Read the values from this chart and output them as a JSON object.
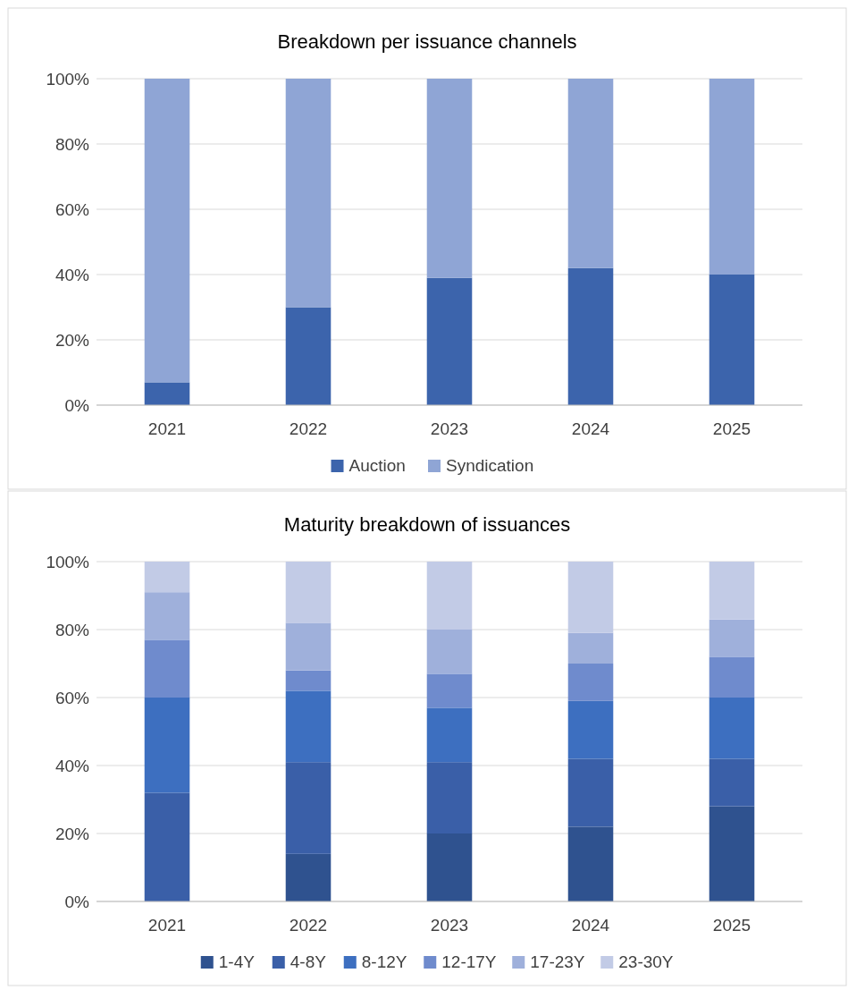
{
  "chart_data": [
    {
      "type": "bar",
      "title": "Breakdown per issuance channels",
      "categories": [
        "2021",
        "2022",
        "2023",
        "2024",
        "2025"
      ],
      "stacked": true,
      "ylim": [
        0,
        100
      ],
      "yticks": [
        {
          "value": 0,
          "label": "0%"
        },
        {
          "value": 20,
          "label": "20%"
        },
        {
          "value": 40,
          "label": "40%"
        },
        {
          "value": 60,
          "label": "60%"
        },
        {
          "value": 80,
          "label": "80%"
        },
        {
          "value": 100,
          "label": "100%"
        }
      ],
      "grid": "y",
      "legend": "bottom",
      "series": [
        {
          "name": "Auction",
          "color": "#3c64ac",
          "values": [
            7,
            30,
            39,
            42,
            40
          ]
        },
        {
          "name": "Syndication",
          "color": "#8fa5d5",
          "values": [
            93,
            70,
            61,
            58,
            60
          ]
        }
      ]
    },
    {
      "type": "bar",
      "title": "Maturity breakdown of issuances",
      "categories": [
        "2021",
        "2022",
        "2023",
        "2024",
        "2025"
      ],
      "stacked": true,
      "ylim": [
        0,
        100
      ],
      "yticks": [
        {
          "value": 0,
          "label": "0%"
        },
        {
          "value": 20,
          "label": "20%"
        },
        {
          "value": 40,
          "label": "40%"
        },
        {
          "value": 60,
          "label": "60%"
        },
        {
          "value": 80,
          "label": "80%"
        },
        {
          "value": 100,
          "label": "100%"
        }
      ],
      "grid": "y",
      "legend": "bottom",
      "series": [
        {
          "name": "1-4Y",
          "color": "#2f528f",
          "values": [
            0,
            14,
            20,
            22,
            28
          ]
        },
        {
          "name": "4-8Y",
          "color": "#3a5fa8",
          "values": [
            32,
            27,
            21,
            20,
            14
          ]
        },
        {
          "name": "8-12Y",
          "color": "#3d6fc0",
          "values": [
            28,
            21,
            16,
            17,
            18
          ]
        },
        {
          "name": "12-17Y",
          "color": "#6f8bcd",
          "values": [
            17,
            6,
            10,
            11,
            12
          ]
        },
        {
          "name": "17-23Y",
          "color": "#9fb0db",
          "values": [
            14,
            14,
            13,
            9,
            11
          ]
        },
        {
          "name": "23-30Y",
          "color": "#c2cbe6",
          "values": [
            9,
            18,
            20,
            21,
            17
          ]
        }
      ]
    }
  ]
}
